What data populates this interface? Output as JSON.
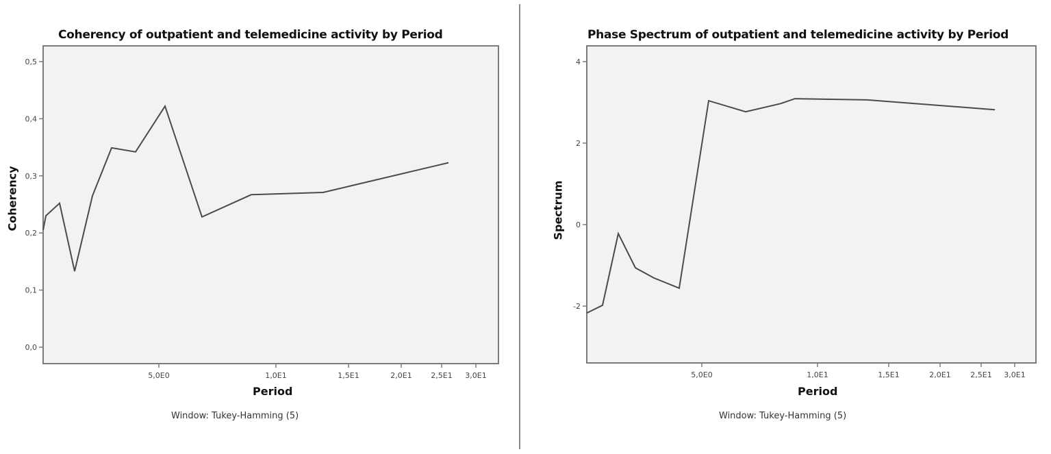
{
  "panels": [
    {
      "title": "Coherency of outpatient and telemedicine activity by Period",
      "ylabel": "Coherency",
      "xlabel": "Period",
      "note": "Window: Tukey-Hamming (5)"
    },
    {
      "title": "Phase Spectrum of outpatient and telemedicine activity by Period",
      "ylabel": "Spectrum",
      "xlabel": "Period",
      "note": "Window: Tukey-Hamming (5)"
    }
  ],
  "colors": {
    "plot_bg": "#f2f2f2",
    "frame": "#7a7a7a",
    "line": "#4a4a4a"
  },
  "chart_data": [
    {
      "type": "line",
      "title": "Coherency of outpatient and telemedicine activity by Period",
      "xlabel": "Period",
      "ylabel": "Coherency",
      "subtitle": "Window: Tukey-Hamming (5)",
      "x_ticks": [
        {
          "label": "5,0E0",
          "value": 5
        },
        {
          "label": "1,0E1",
          "value": 10
        },
        {
          "label": "1,5E1",
          "value": 15
        },
        {
          "label": "2,0E1",
          "value": 20
        },
        {
          "label": "2,5E1",
          "value": 25
        },
        {
          "label": "3,0E1",
          "value": 30
        }
      ],
      "y_ticks": [
        {
          "label": "0,0",
          "value": 0.0
        },
        {
          "label": "0,1",
          "value": 0.1
        },
        {
          "label": "0,2",
          "value": 0.2
        },
        {
          "label": "0,3",
          "value": 0.3
        },
        {
          "label": "0,4",
          "value": 0.4
        },
        {
          "label": "0,5",
          "value": 0.5
        }
      ],
      "ylim": [
        -0.03,
        0.52
      ],
      "grid": false,
      "x": [
        2.17,
        2.36,
        2.6,
        2.89,
        3.25,
        3.71,
        4.33,
        5.2,
        6.5,
        8.67,
        13.0,
        26.0
      ],
      "values": [
        0.205,
        0.23,
        0.252,
        0.133,
        0.265,
        0.349,
        0.342,
        0.422,
        0.228,
        0.267,
        0.271,
        0.323
      ]
    },
    {
      "type": "line",
      "title": "Phase Spectrum of outpatient and telemedicine activity by Period",
      "xlabel": "Period",
      "ylabel": "Spectrum",
      "subtitle": "Window: Tukey-Hamming (5)",
      "x_ticks": [
        {
          "label": "5,0E0",
          "value": 5
        },
        {
          "label": "1,0E1",
          "value": 10
        },
        {
          "label": "1,5E1",
          "value": 15
        },
        {
          "label": "2,0E1",
          "value": 20
        },
        {
          "label": "2,5E1",
          "value": 25
        },
        {
          "label": "3,0E1",
          "value": 30
        }
      ],
      "y_ticks": [
        {
          "label": "-2",
          "value": -2
        },
        {
          "label": "0",
          "value": 0
        },
        {
          "label": "2",
          "value": 2
        },
        {
          "label": "4",
          "value": 4
        }
      ],
      "ylim": [
        -3.4,
        4.4
      ],
      "grid": false,
      "x": [
        2.36,
        2.6,
        2.89,
        3.25,
        3.71,
        4.33,
        5.2,
        6.5,
        8.0,
        8.67,
        13.0,
        26.0
      ],
      "values": [
        -2.17,
        -1.98,
        -0.22,
        -1.06,
        -1.31,
        -1.56,
        3.04,
        2.77,
        2.97,
        3.09,
        3.06,
        2.82
      ]
    }
  ]
}
